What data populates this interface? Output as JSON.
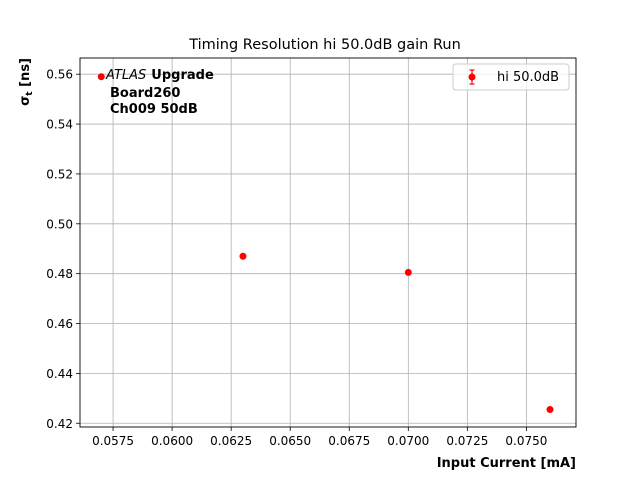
{
  "chart_data": {
    "type": "scatter",
    "title": "Timing Resolution hi 50.0dB gain Run",
    "xlabel": "Input Current [mA]",
    "ylabel": "σ",
    "ylabel_sub": "t",
    "ylabel_unit": " [ns]",
    "xlim": [
      0.0561,
      0.0771
    ],
    "ylim": [
      0.4185,
      0.5665
    ],
    "xticks": [
      0.0575,
      0.06,
      0.0625,
      0.065,
      0.0675,
      0.07,
      0.0725,
      0.075
    ],
    "xtick_labels": [
      "0.0575",
      "0.0600",
      "0.0625",
      "0.0650",
      "0.0675",
      "0.0700",
      "0.0725",
      "0.0750"
    ],
    "yticks": [
      0.42,
      0.44,
      0.46,
      0.48,
      0.5,
      0.52,
      0.54,
      0.56
    ],
    "ytick_labels": [
      "0.42",
      "0.44",
      "0.46",
      "0.48",
      "0.50",
      "0.52",
      "0.54",
      "0.56"
    ],
    "grid": true,
    "legend_position": "top-right",
    "series": [
      {
        "name": "hi 50.0dB",
        "color": "#ff0000",
        "x": [
          0.057,
          0.063,
          0.07,
          0.076
        ],
        "y": [
          0.559,
          0.487,
          0.4805,
          0.4255
        ]
      }
    ],
    "annotation": {
      "italic": "ATLAS",
      "bold": "Upgrade",
      "lines": [
        "Board260",
        "Ch009 50dB"
      ]
    }
  }
}
